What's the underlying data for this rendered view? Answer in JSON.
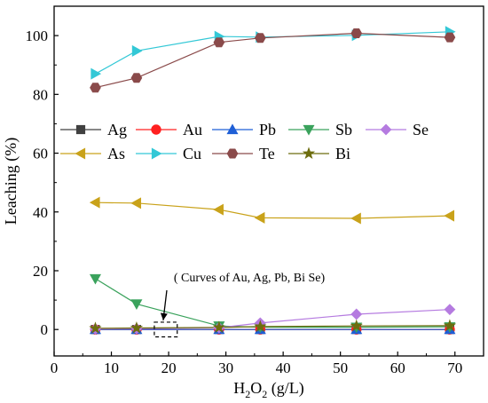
{
  "chart_data": {
    "type": "line",
    "xlabel": "H",
    "xlabel_sub": "2",
    "xlabel_mid": "O",
    "xlabel_sub2": "2",
    "xlabel_tail": " (g/L)",
    "ylabel": "Leaching (%)",
    "xlim": [
      0,
      75
    ],
    "ylim": [
      -9,
      110
    ],
    "xticks": [
      0,
      10,
      20,
      30,
      40,
      50,
      60,
      70
    ],
    "yticks": [
      0,
      20,
      40,
      60,
      80,
      100
    ],
    "grid": false,
    "legend_placement": "middle",
    "x": [
      7.2,
      14.4,
      28.8,
      36,
      52.8,
      69.1
    ],
    "series": [
      {
        "name": "Ag",
        "marker": "square",
        "color": "#404040",
        "values": [
          0,
          0,
          0,
          0,
          0,
          0
        ]
      },
      {
        "name": "Au",
        "marker": "circle",
        "color": "#ff2020",
        "values": [
          0,
          0,
          0,
          0,
          0,
          0
        ]
      },
      {
        "name": "Pb",
        "marker": "triangle-up",
        "color": "#1f5fd6",
        "values": [
          0,
          0,
          0,
          0,
          0,
          0
        ]
      },
      {
        "name": "Sb",
        "marker": "triangle-down",
        "color": "#3aa25c",
        "values": [
          17.3,
          8.7,
          1.2,
          0.8,
          0.8,
          0.9
        ]
      },
      {
        "name": "Se",
        "marker": "diamond",
        "color": "#b57be0",
        "values": [
          0.2,
          0.3,
          0.6,
          2.2,
          5.2,
          6.8
        ]
      },
      {
        "name": "As",
        "marker": "triangle-left",
        "color": "#c9a21a",
        "values": [
          43.2,
          43.0,
          40.8,
          38.0,
          37.8,
          38.7
        ]
      },
      {
        "name": "Cu",
        "marker": "triangle-right",
        "color": "#33c8d6",
        "values": [
          87.0,
          94.8,
          99.7,
          99.5,
          100.1,
          101.3
        ]
      },
      {
        "name": "Te",
        "marker": "hexagon",
        "color": "#8a4a4a",
        "values": [
          82.3,
          85.6,
          97.7,
          99.2,
          100.8,
          99.4
        ]
      },
      {
        "name": "Bi",
        "marker": "star",
        "color": "#6d6d0e",
        "values": [
          0.4,
          0.5,
          0.7,
          1.0,
          1.2,
          1.3
        ]
      }
    ],
    "annotation": {
      "text": "( Curves of Au, Ag, Pb, Bi Se)",
      "box_x": [
        17.5,
        21.5
      ],
      "box_y": [
        -2.5,
        2.5
      ]
    }
  }
}
